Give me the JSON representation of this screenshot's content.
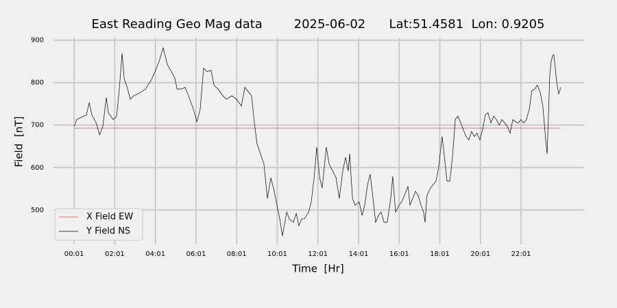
{
  "chart_data": {
    "type": "line",
    "title": "East Reading Geo Mag data        2025-06-02      Lat:51.4581  Lon: 0.9205",
    "x_label": "Time  [Hr]",
    "y_label": "Field  [nT]",
    "xlim": [
      -1.0,
      25.12
    ],
    "ylim": [
      419,
      906
    ],
    "xticks": [
      {
        "value": 0.0167,
        "label": "00:01"
      },
      {
        "value": 2.0167,
        "label": "02:01"
      },
      {
        "value": 4.0167,
        "label": "04:01"
      },
      {
        "value": 6.0167,
        "label": "06:01"
      },
      {
        "value": 8.0167,
        "label": "08:01"
      },
      {
        "value": 10.0167,
        "label": "10:01"
      },
      {
        "value": 12.0167,
        "label": "12:01"
      },
      {
        "value": 14.0167,
        "label": "14:01"
      },
      {
        "value": 16.0167,
        "label": "16:01"
      },
      {
        "value": 18.0167,
        "label": "18:01"
      },
      {
        "value": 20.0167,
        "label": "20:01"
      },
      {
        "value": 22.0167,
        "label": "22:01"
      }
    ],
    "yticks": [
      500,
      600,
      700,
      800,
      900
    ],
    "grid": true,
    "legend": "lower-left",
    "series": [
      {
        "name": "X Field EW",
        "color": "#e24a33",
        "x": [
          0.02,
          23.97
        ],
        "values": [
          693,
          693
        ]
      },
      {
        "name": "Y Field NS",
        "color": "#000000",
        "x": [
          0.02,
          0.15,
          0.35,
          0.62,
          0.76,
          0.89,
          1.1,
          1.27,
          1.43,
          1.6,
          1.7,
          1.94,
          2.11,
          2.24,
          2.38,
          2.48,
          2.65,
          2.78,
          2.95,
          3.29,
          3.53,
          3.8,
          4.0,
          4.2,
          4.4,
          4.61,
          4.81,
          4.98,
          5.08,
          5.31,
          5.48,
          5.65,
          5.89,
          6.06,
          6.22,
          6.39,
          6.56,
          6.76,
          6.9,
          7.1,
          7.34,
          7.51,
          7.78,
          8.01,
          8.25,
          8.42,
          8.62,
          8.75,
          8.89,
          9.02,
          9.19,
          9.36,
          9.53,
          9.7,
          9.87,
          10.0,
          10.14,
          10.27,
          10.48,
          10.61,
          10.81,
          10.95,
          11.08,
          11.22,
          11.35,
          11.56,
          11.69,
          11.83,
          11.96,
          12.1,
          12.23,
          12.43,
          12.57,
          12.74,
          12.91,
          13.07,
          13.24,
          13.38,
          13.51,
          13.58,
          13.72,
          13.85,
          14.05,
          14.19,
          14.32,
          14.46,
          14.59,
          14.73,
          14.86,
          15.0,
          15.13,
          15.27,
          15.43,
          15.6,
          15.7,
          15.84,
          16.01,
          16.14,
          16.28,
          16.45,
          16.55,
          16.68,
          16.82,
          16.95,
          17.09,
          17.22,
          17.29,
          17.39,
          17.56,
          17.69,
          17.83,
          17.96,
          18.13,
          18.23,
          18.37,
          18.51,
          18.64,
          18.78,
          18.91,
          19.05,
          19.18,
          19.31,
          19.45,
          19.58,
          19.72,
          19.85,
          19.99,
          20.12,
          20.26,
          20.39,
          20.53,
          20.67,
          20.8,
          20.94,
          21.07,
          21.21,
          21.34,
          21.48,
          21.61,
          21.74,
          21.88,
          22.01,
          22.15,
          22.28,
          22.42,
          22.55,
          22.69,
          22.82,
          22.96,
          23.09,
          23.23,
          23.3,
          23.36,
          23.43,
          23.5,
          23.57,
          23.63,
          23.77,
          23.87,
          23.97
        ],
        "values": [
          697,
          713,
          718,
          724,
          753,
          724,
          705,
          677,
          697,
          765,
          729,
          713,
          721,
          785,
          869,
          810,
          785,
          761,
          769,
          777,
          785,
          805,
          826,
          850,
          882,
          842,
          826,
          810,
          785,
          785,
          789,
          769,
          737,
          708,
          737,
          834,
          826,
          829,
          794,
          785,
          769,
          761,
          769,
          761,
          745,
          789,
          777,
          769,
          705,
          656,
          632,
          608,
          527,
          576,
          544,
          511,
          479,
          439,
          495,
          479,
          471,
          492,
          463,
          479,
          479,
          495,
          519,
          576,
          648,
          576,
          552,
          648,
          608,
          592,
          576,
          527,
          592,
          624,
          592,
          632,
          527,
          511,
          519,
          487,
          511,
          560,
          584,
          527,
          471,
          487,
          495,
          471,
          471,
          527,
          579,
          495,
          511,
          519,
          535,
          556,
          511,
          527,
          544,
          535,
          511,
          495,
          471,
          535,
          552,
          560,
          568,
          600,
          673,
          632,
          568,
          568,
          624,
          713,
          721,
          705,
          689,
          673,
          665,
          685,
          673,
          681,
          665,
          689,
          724,
          729,
          705,
          721,
          713,
          700,
          713,
          705,
          697,
          681,
          713,
          708,
          705,
          713,
          705,
          713,
          737,
          781,
          785,
          794,
          777,
          745,
          665,
          632,
          713,
          818,
          850,
          863,
          866,
          802,
          773,
          789
        ]
      }
    ]
  }
}
